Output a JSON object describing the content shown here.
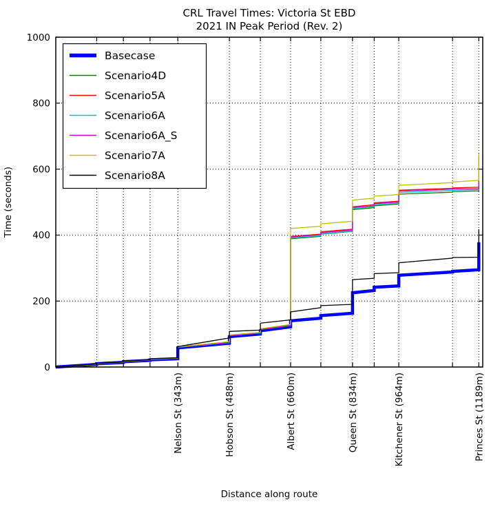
{
  "chart_data": {
    "type": "line",
    "title": "CRL Travel Times: Victoria St EBD",
    "subtitle": "2021 IN Peak Period (Rev. 2)",
    "xlabel": "Distance along route",
    "ylabel": "Time (seconds)",
    "xlim": [
      0,
      1200
    ],
    "ylim": [
      0,
      1000
    ],
    "yticks": [
      0,
      200,
      400,
      600,
      800,
      1000
    ],
    "grid": "dotted",
    "legend_position": "upper-left",
    "x_major_ticks": [
      {
        "x": 343,
        "label": "Nelson St (343m)"
      },
      {
        "x": 488,
        "label": "Hobson St (488m)"
      },
      {
        "x": 660,
        "label": "Albert St (660m)"
      },
      {
        "x": 834,
        "label": "Queen St (834m)"
      },
      {
        "x": 964,
        "label": "Kitchener St (964m)"
      },
      {
        "x": 1189,
        "label": "Princes St (1189m)"
      }
    ],
    "x_minor_ticks": [
      115,
      190,
      265,
      575,
      745,
      895,
      1115
    ],
    "series": [
      {
        "name": "Basecase",
        "color": "#0000ff",
        "width": 4.5,
        "points": [
          [
            0,
            0
          ],
          [
            115,
            8
          ],
          [
            115,
            10
          ],
          [
            190,
            14
          ],
          [
            190,
            16
          ],
          [
            265,
            20
          ],
          [
            265,
            22
          ],
          [
            343,
            25
          ],
          [
            343,
            58
          ],
          [
            488,
            72
          ],
          [
            488,
            92
          ],
          [
            575,
            100
          ],
          [
            575,
            110
          ],
          [
            660,
            122
          ],
          [
            660,
            140
          ],
          [
            745,
            148
          ],
          [
            745,
            156
          ],
          [
            834,
            163
          ],
          [
            834,
            225
          ],
          [
            895,
            232
          ],
          [
            895,
            242
          ],
          [
            964,
            246
          ],
          [
            964,
            278
          ],
          [
            1115,
            288
          ],
          [
            1115,
            290
          ],
          [
            1189,
            295
          ],
          [
            1189,
            378
          ]
        ]
      },
      {
        "name": "Scenario4D",
        "color": "#008000",
        "width": 1.3,
        "points": [
          [
            0,
            0
          ],
          [
            115,
            8
          ],
          [
            115,
            10
          ],
          [
            190,
            14
          ],
          [
            190,
            17
          ],
          [
            265,
            21
          ],
          [
            265,
            23
          ],
          [
            343,
            26
          ],
          [
            343,
            60
          ],
          [
            488,
            74
          ],
          [
            488,
            95
          ],
          [
            575,
            103
          ],
          [
            575,
            113
          ],
          [
            660,
            125
          ],
          [
            660,
            389
          ],
          [
            745,
            396
          ],
          [
            745,
            403
          ],
          [
            834,
            411
          ],
          [
            834,
            477
          ],
          [
            895,
            483
          ],
          [
            895,
            489
          ],
          [
            964,
            494
          ],
          [
            964,
            524
          ],
          [
            1115,
            530
          ],
          [
            1115,
            532
          ],
          [
            1189,
            534
          ],
          [
            1189,
            626
          ]
        ]
      },
      {
        "name": "Scenario5A",
        "color": "#ff0000",
        "width": 1.3,
        "points": [
          [
            0,
            0
          ],
          [
            115,
            8
          ],
          [
            115,
            10
          ],
          [
            190,
            15
          ],
          [
            190,
            17
          ],
          [
            265,
            21
          ],
          [
            265,
            24
          ],
          [
            343,
            27
          ],
          [
            343,
            61
          ],
          [
            488,
            75
          ],
          [
            488,
            96
          ],
          [
            575,
            104
          ],
          [
            575,
            115
          ],
          [
            660,
            128
          ],
          [
            660,
            396
          ],
          [
            745,
            403
          ],
          [
            745,
            410
          ],
          [
            834,
            418
          ],
          [
            834,
            486
          ],
          [
            895,
            492
          ],
          [
            895,
            498
          ],
          [
            964,
            503
          ],
          [
            964,
            536
          ],
          [
            1115,
            542
          ],
          [
            1115,
            543
          ],
          [
            1189,
            545
          ],
          [
            1189,
            640
          ]
        ]
      },
      {
        "name": "Scenario6A",
        "color": "#00bfbf",
        "width": 1.3,
        "points": [
          [
            0,
            0
          ],
          [
            115,
            8
          ],
          [
            115,
            10
          ],
          [
            190,
            14
          ],
          [
            190,
            17
          ],
          [
            265,
            21
          ],
          [
            265,
            23
          ],
          [
            343,
            26
          ],
          [
            343,
            60
          ],
          [
            488,
            74
          ],
          [
            488,
            95
          ],
          [
            575,
            103
          ],
          [
            575,
            114
          ],
          [
            660,
            126
          ],
          [
            660,
            391
          ],
          [
            745,
            398
          ],
          [
            745,
            404
          ],
          [
            834,
            412
          ],
          [
            834,
            480
          ],
          [
            895,
            486
          ],
          [
            895,
            492
          ],
          [
            964,
            497
          ],
          [
            964,
            529
          ],
          [
            1115,
            535
          ],
          [
            1115,
            536
          ],
          [
            1189,
            538
          ],
          [
            1189,
            630
          ]
        ]
      },
      {
        "name": "Scenario6A_S",
        "color": "#cc00cc",
        "width": 1.3,
        "points": [
          [
            0,
            0
          ],
          [
            115,
            8
          ],
          [
            115,
            10
          ],
          [
            190,
            15
          ],
          [
            190,
            17
          ],
          [
            265,
            21
          ],
          [
            265,
            24
          ],
          [
            343,
            26
          ],
          [
            343,
            61
          ],
          [
            488,
            75
          ],
          [
            488,
            95
          ],
          [
            575,
            104
          ],
          [
            575,
            114
          ],
          [
            660,
            127
          ],
          [
            660,
            394
          ],
          [
            745,
            401
          ],
          [
            745,
            407
          ],
          [
            834,
            415
          ],
          [
            834,
            483
          ],
          [
            895,
            489
          ],
          [
            895,
            495
          ],
          [
            964,
            500
          ],
          [
            964,
            533
          ],
          [
            1115,
            539
          ],
          [
            1115,
            540
          ],
          [
            1189,
            541
          ],
          [
            1189,
            636
          ]
        ]
      },
      {
        "name": "Scenario7A",
        "color": "#bfbf00",
        "width": 1.3,
        "points": [
          [
            0,
            0
          ],
          [
            115,
            8
          ],
          [
            115,
            10
          ],
          [
            190,
            15
          ],
          [
            190,
            17
          ],
          [
            265,
            21
          ],
          [
            265,
            24
          ],
          [
            343,
            27
          ],
          [
            343,
            61
          ],
          [
            488,
            77
          ],
          [
            488,
            97
          ],
          [
            575,
            105
          ],
          [
            575,
            116
          ],
          [
            660,
            129
          ],
          [
            660,
            420
          ],
          [
            745,
            427
          ],
          [
            745,
            434
          ],
          [
            834,
            442
          ],
          [
            834,
            506
          ],
          [
            895,
            512
          ],
          [
            895,
            518
          ],
          [
            964,
            523
          ],
          [
            964,
            551
          ],
          [
            1115,
            559
          ],
          [
            1115,
            561
          ],
          [
            1189,
            566
          ],
          [
            1189,
            647
          ]
        ]
      },
      {
        "name": "Scenario8A",
        "color": "#000000",
        "width": 1.3,
        "points": [
          [
            0,
            0
          ],
          [
            115,
            9
          ],
          [
            115,
            11
          ],
          [
            190,
            15
          ],
          [
            190,
            18
          ],
          [
            265,
            22
          ],
          [
            265,
            25
          ],
          [
            343,
            28
          ],
          [
            343,
            62
          ],
          [
            488,
            88
          ],
          [
            488,
            108
          ],
          [
            575,
            112
          ],
          [
            575,
            133
          ],
          [
            660,
            143
          ],
          [
            660,
            167
          ],
          [
            745,
            180
          ],
          [
            745,
            186
          ],
          [
            834,
            190
          ],
          [
            834,
            265
          ],
          [
            895,
            269
          ],
          [
            895,
            283
          ],
          [
            964,
            286
          ],
          [
            964,
            316
          ],
          [
            1115,
            330
          ],
          [
            1115,
            332
          ],
          [
            1189,
            333
          ],
          [
            1189,
            418
          ]
        ]
      }
    ]
  }
}
